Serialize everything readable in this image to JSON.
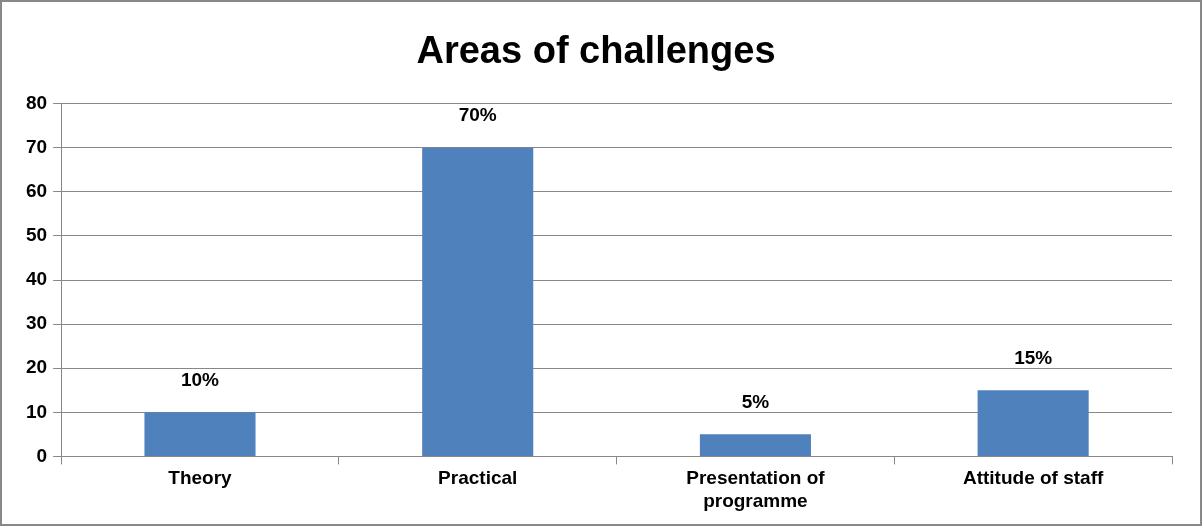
{
  "chart_data": {
    "type": "bar",
    "title": "Areas of challenges",
    "categories": [
      "Theory",
      "Practical",
      "Presentation of programme",
      "Attitude of staff"
    ],
    "values": [
      10,
      70,
      5,
      15
    ],
    "value_labels": [
      "10%",
      "70%",
      "5%",
      "15%"
    ],
    "color": "#4f81bd",
    "ylim": [
      0,
      80
    ],
    "yticks": [
      0,
      10,
      20,
      30,
      40,
      50,
      60,
      70,
      80
    ],
    "grid": "y",
    "legend": false
  }
}
